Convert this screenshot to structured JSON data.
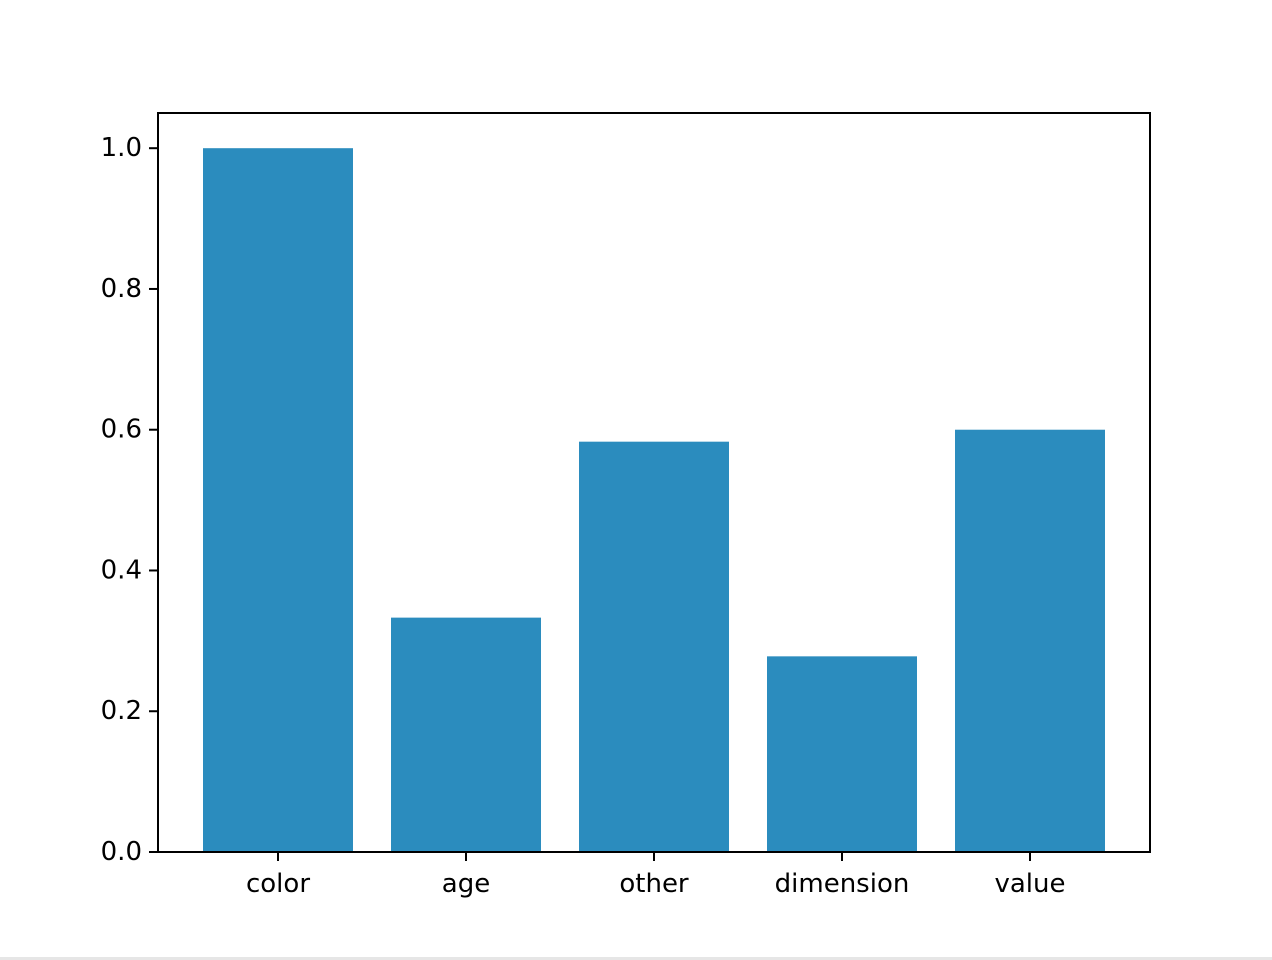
{
  "chart_data": {
    "type": "bar",
    "title": "",
    "xlabel": "",
    "ylabel": "",
    "categories": [
      "color",
      "age",
      "other",
      "dimension",
      "value"
    ],
    "values": [
      1.0,
      0.333,
      0.583,
      0.278,
      0.6
    ],
    "ylim": [
      0,
      1.05
    ],
    "yticks": [
      0.0,
      0.2,
      0.4,
      0.6,
      0.8,
      1.0
    ],
    "ytick_labels": [
      "0.0",
      "0.2",
      "0.4",
      "0.6",
      "0.8",
      "1.0"
    ],
    "grid": false,
    "legend": "none",
    "bar_color": "#2b8cbe"
  }
}
